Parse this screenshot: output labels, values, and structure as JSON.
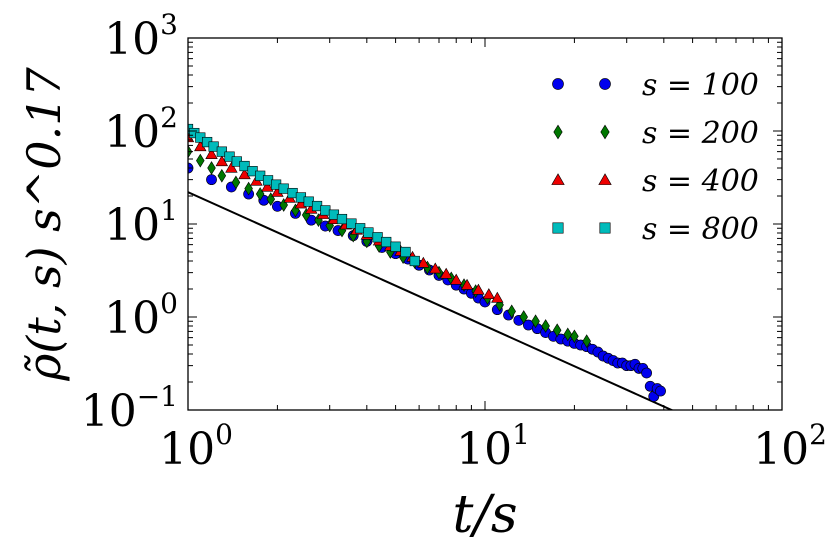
{
  "chart_data": {
    "type": "scatter",
    "xlabel": "t/s",
    "ylabel": "ρ̃(t, s) s^0.17",
    "xscale": "log",
    "yscale": "log",
    "xlim": [
      1,
      100
    ],
    "ylim": [
      0.1,
      1000
    ],
    "x_ticks": [
      {
        "value": 1,
        "base": "10",
        "exp": "0"
      },
      {
        "value": 10,
        "base": "10",
        "exp": "1"
      },
      {
        "value": 100,
        "base": "10",
        "exp": "2"
      }
    ],
    "y_ticks": [
      {
        "value": 0.1,
        "base": "10",
        "exp": "−1"
      },
      {
        "value": 1,
        "base": "10",
        "exp": "0"
      },
      {
        "value": 10,
        "base": "10",
        "exp": "1"
      },
      {
        "value": 100,
        "base": "10",
        "exp": "2"
      },
      {
        "value": 1000,
        "base": "10",
        "exp": "3"
      }
    ],
    "legend_position": "top-right",
    "grid": false,
    "reference_line": {
      "x": [
        1,
        45
      ],
      "y": [
        22,
        0.092
      ],
      "color": "#000000"
    },
    "series": [
      {
        "name": "s = 100",
        "legend_label": "s = 100",
        "marker": "circle",
        "color": "#0000ee",
        "x": [
          1.0,
          1.2,
          1.4,
          1.6,
          1.8,
          2.0,
          2.3,
          2.6,
          2.9,
          3.2,
          3.6,
          4.0,
          4.5,
          5.0,
          5.5,
          6.0,
          6.5,
          7.0,
          7.5,
          8.0,
          8.5,
          9.0,
          9.5,
          10.0,
          11.0,
          12.0,
          13.0,
          14.0,
          15.0,
          16.0,
          17.0,
          18.0,
          19.0,
          20.0,
          21.0,
          22.0,
          23.0,
          24.0,
          25.0,
          26.0,
          27.0,
          28.0,
          29.0,
          30.0,
          31.0,
          32.0,
          33.0,
          34.0,
          35.0,
          36.0,
          37.0,
          38.0,
          39.0
        ],
        "y": [
          40,
          30,
          25,
          21,
          18,
          15.5,
          13,
          11,
          9.5,
          8.5,
          7.5,
          6.5,
          5.6,
          4.8,
          4.2,
          3.6,
          3.2,
          2.8,
          2.5,
          2.2,
          2.0,
          1.8,
          1.6,
          1.45,
          1.2,
          1.05,
          0.92,
          0.82,
          0.75,
          0.68,
          0.62,
          0.58,
          0.55,
          0.52,
          0.5,
          0.48,
          0.45,
          0.42,
          0.38,
          0.36,
          0.34,
          0.32,
          0.32,
          0.3,
          0.3,
          0.31,
          0.28,
          0.28,
          0.25,
          0.18,
          0.14,
          0.17,
          0.16
        ]
      },
      {
        "name": "s = 200",
        "legend_label": "s = 200",
        "marker": "diamond",
        "color": "#007700",
        "x": [
          1.0,
          1.1,
          1.2,
          1.3,
          1.45,
          1.6,
          1.75,
          1.9,
          2.1,
          2.3,
          2.5,
          2.75,
          3.0,
          3.3,
          3.6,
          4.0,
          4.4,
          4.8,
          5.3,
          5.8,
          6.4,
          7.0,
          7.7,
          8.5,
          9.3,
          10.2,
          11.2,
          12.3,
          13.5,
          14.8,
          16.0,
          17.5,
          19.0,
          20.0,
          22.0
        ],
        "y": [
          60,
          48,
          40,
          33,
          28,
          24,
          21,
          18.5,
          16,
          14,
          12.5,
          11,
          9.6,
          8.5,
          7.5,
          6.5,
          5.8,
          5.0,
          4.4,
          3.9,
          3.4,
          3.0,
          2.6,
          2.2,
          1.9,
          1.6,
          1.35,
          1.15,
          1.0,
          0.9,
          0.8,
          0.72,
          0.65,
          0.62,
          0.55
        ]
      },
      {
        "name": "s = 400",
        "legend_label": "s = 400",
        "marker": "triangle",
        "color": "#ee0000",
        "x": [
          1.0,
          1.1,
          1.2,
          1.3,
          1.4,
          1.55,
          1.7,
          1.85,
          2.0,
          2.2,
          2.4,
          2.6,
          2.85,
          3.1,
          3.4,
          3.7,
          4.0,
          4.4,
          4.8,
          5.2,
          5.7,
          6.2,
          6.8,
          7.4,
          8.0,
          8.7,
          9.5,
          10.3,
          11.0
        ],
        "y": [
          85,
          68,
          56,
          47,
          40,
          34,
          29,
          25,
          22,
          19,
          16.5,
          14.5,
          12.7,
          11.2,
          9.8,
          8.6,
          7.6,
          6.6,
          5.8,
          5.1,
          4.4,
          3.8,
          3.3,
          2.9,
          2.5,
          2.2,
          1.95,
          1.75,
          1.6
        ]
      },
      {
        "name": "s = 800",
        "legend_label": "s = 800",
        "marker": "square",
        "color": "#00bbbb",
        "x": [
          1.0,
          1.05,
          1.1,
          1.16,
          1.22,
          1.3,
          1.38,
          1.46,
          1.55,
          1.65,
          1.75,
          1.86,
          1.98,
          2.1,
          2.25,
          2.4,
          2.55,
          2.72,
          2.9,
          3.1,
          3.3,
          3.55,
          3.8,
          4.05,
          4.35,
          4.65,
          5.0,
          5.4,
          5.8
        ],
        "y": [
          105,
          95,
          85,
          76,
          68,
          60,
          53,
          47,
          42,
          37,
          33,
          29.5,
          26.5,
          24,
          21.5,
          19.3,
          17.4,
          15.6,
          14,
          12.6,
          11.3,
          10.1,
          9.0,
          8.1,
          7.2,
          6.4,
          5.7,
          5.0,
          4.0
        ]
      }
    ]
  }
}
